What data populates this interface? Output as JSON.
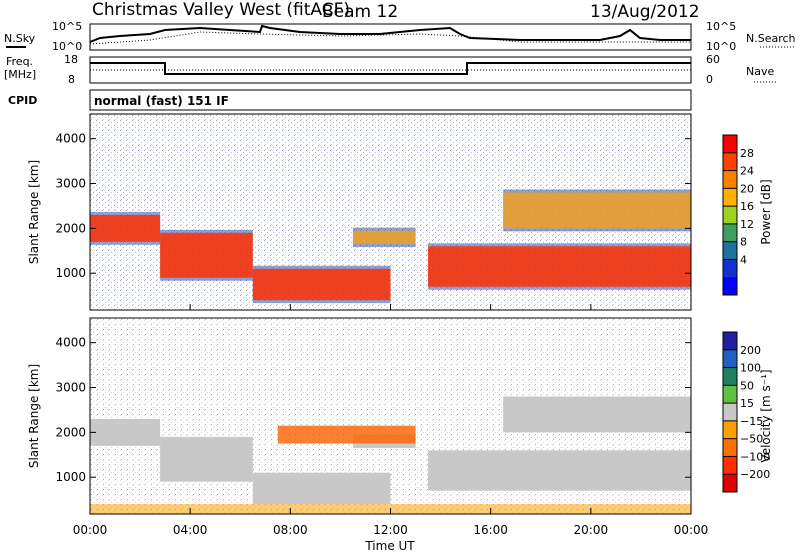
{
  "header": {
    "station": "Christmas Valley West (fitACF)",
    "beam": "Beam 12",
    "date": "13/Aug/2012"
  },
  "status_panels": {
    "nsky_label": "N.Sky",
    "nsky_ticks": [
      "10^5",
      "10^0"
    ],
    "nsearch_label": "N.Search",
    "nsearch_ticks": [
      "10^5",
      "10^0"
    ],
    "freq_label_1": "Freq.",
    "freq_label_2": "[MHz]",
    "freq_ticks": [
      "18",
      "8"
    ],
    "nave_label": "Nave",
    "nave_ticks": [
      "60",
      "0"
    ],
    "cpid_label": "CPID",
    "cpid_value": "normal (fast) 151 IF"
  },
  "chart_data": [
    {
      "type": "heatmap",
      "panel": "power",
      "ylabel": "Slant Range [km]",
      "yticks": [
        "4000",
        "3000",
        "2000",
        "1000"
      ],
      "ytick_values": [
        4000,
        3000,
        2000,
        1000
      ],
      "ylim": [
        180,
        4550
      ],
      "colorbar_label": "Power [dB]",
      "colorbar_ticks": [
        "28",
        "24",
        "20",
        "16",
        "12",
        "8",
        "4"
      ],
      "colorbar_colors": [
        "#ff0000",
        "#ff4000",
        "#ff8000",
        "#ffb000",
        "#a0d020",
        "#40a060",
        "#2070a0",
        "#1030d0",
        "#0000ff"
      ],
      "echo_bands": [
        {
          "t0": 0.0,
          "t1": 2.8,
          "r0": 1700,
          "r1": 2300,
          "level": "high"
        },
        {
          "t0": 2.8,
          "t1": 6.5,
          "r0": 900,
          "r1": 1900,
          "level": "high"
        },
        {
          "t0": 6.5,
          "t1": 12.0,
          "r0": 400,
          "r1": 1100,
          "level": "high"
        },
        {
          "t0": 10.5,
          "t1": 13.0,
          "r0": 1650,
          "r1": 1950,
          "level": "mid"
        },
        {
          "t0": 13.5,
          "t1": 24.0,
          "r0": 700,
          "r1": 1600,
          "level": "high"
        },
        {
          "t0": 16.5,
          "t1": 24.0,
          "r0": 2000,
          "r1": 2800,
          "level": "mid"
        }
      ]
    },
    {
      "type": "heatmap",
      "panel": "velocity",
      "ylabel": "Slant Range [km]",
      "yticks": [
        "4000",
        "3000",
        "2000",
        "1000"
      ],
      "ytick_values": [
        4000,
        3000,
        2000,
        1000
      ],
      "ylim": [
        180,
        4550
      ],
      "colorbar_label": "Velocity [m s⁻¹]",
      "colorbar_ticks": [
        "200",
        "100",
        "50",
        "15",
        "−15",
        "−50",
        "−100",
        "−200"
      ],
      "colorbar_colors": [
        "#2020a0",
        "#2060c0",
        "#208060",
        "#60c040",
        "#c8c8c8",
        "#ffa000",
        "#ff7000",
        "#ff3000",
        "#e00000"
      ],
      "xlabel": "Time UT",
      "xticks": [
        "00:00",
        "04:00",
        "08:00",
        "12:00",
        "16:00",
        "20:00",
        "00:00"
      ],
      "xlim": [
        0,
        24
      ]
    }
  ]
}
